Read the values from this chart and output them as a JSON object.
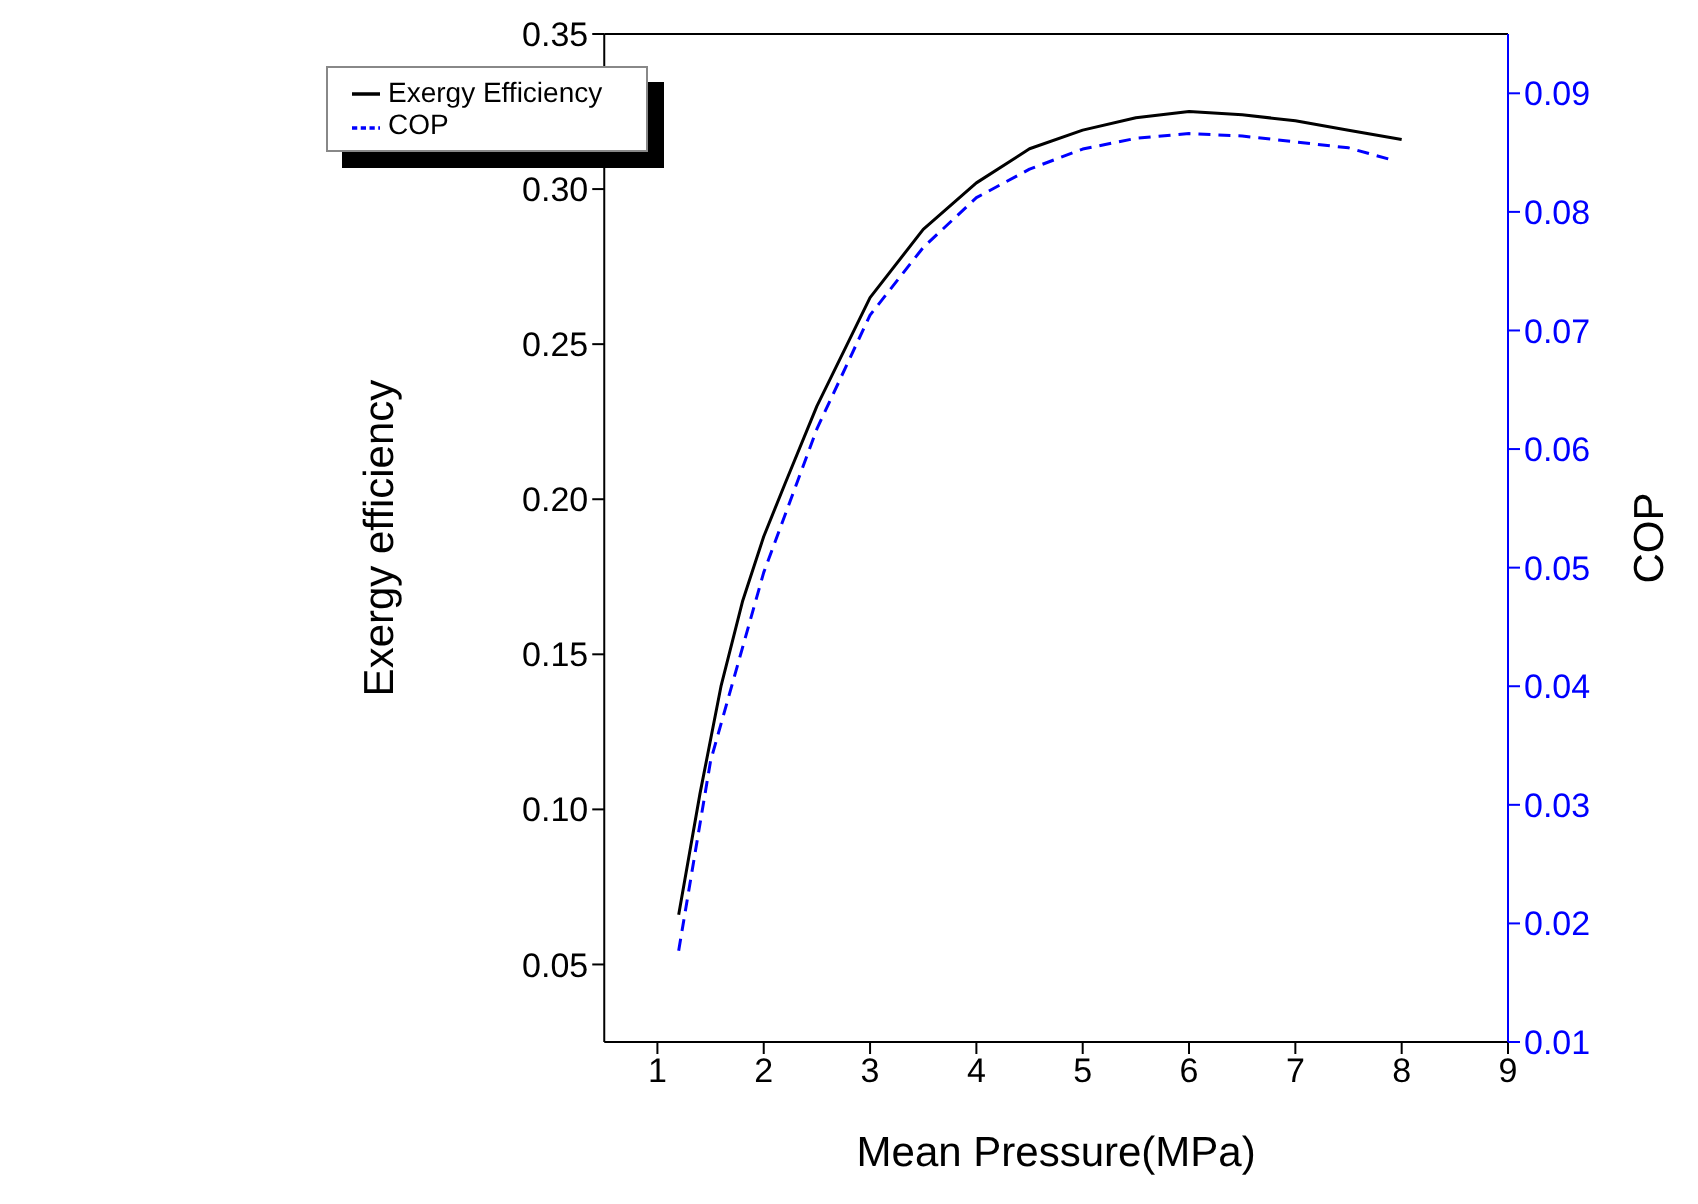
{
  "chart_data": {
    "type": "line",
    "xlabel": "Mean Pressure(MPa)",
    "ylabel": "Exergy efficiency",
    "y2label": "COP",
    "x": [
      1.2,
      1.4,
      1.6,
      1.8,
      2.0,
      2.2,
      2.5,
      3.0,
      3.5,
      4.0,
      4.5,
      5.0,
      5.5,
      6.0,
      6.5,
      7.0,
      7.5,
      8.0
    ],
    "series": [
      {
        "name": "Exergy Efficiency",
        "color": "#000000",
        "line_style": "solid",
        "values": [
          0.066,
          0.105,
          0.14,
          0.167,
          0.188,
          0.205,
          0.23,
          0.265,
          0.287,
          0.302,
          0.313,
          0.319,
          0.323,
          0.325,
          0.324,
          0.322,
          0.319,
          0.316
        ]
      },
      {
        "name": "COP",
        "color": "#0000ff",
        "line_style": "dashed",
        "axis": "y2",
        "x": [
          1.2,
          1.5,
          2.0,
          2.5,
          3.0,
          3.5,
          4.0,
          4.5,
          5.0,
          5.5,
          6.0,
          6.5,
          7.0,
          7.5,
          7.9
        ],
        "values": [
          0.0177,
          0.0337,
          0.0496,
          0.0617,
          0.0713,
          0.077,
          0.0812,
          0.0836,
          0.0853,
          0.0862,
          0.0866,
          0.0864,
          0.0859,
          0.0854,
          0.0844
        ]
      }
    ],
    "xlim": [
      0.5,
      9
    ],
    "xticks": [
      1,
      2,
      3,
      4,
      5,
      6,
      7,
      8,
      9
    ],
    "ylim": [
      0.025,
      0.35
    ],
    "yticks": [
      {
        "value": 0.05,
        "label": "0.05"
      },
      {
        "value": 0.1,
        "label": "0.10"
      },
      {
        "value": 0.15,
        "label": "0.15"
      },
      {
        "value": 0.2,
        "label": "0.20"
      },
      {
        "value": 0.25,
        "label": "0.25"
      },
      {
        "value": 0.3,
        "label": "0.30"
      },
      {
        "value": 0.35,
        "label": "0.35"
      }
    ],
    "y2lim": [
      0.01,
      0.095
    ],
    "y2ticks": [
      0.01,
      0.02,
      0.03,
      0.04,
      0.05,
      0.06,
      0.07,
      0.08,
      0.09
    ],
    "grid": false,
    "legend": "top left",
    "marker": "none"
  }
}
